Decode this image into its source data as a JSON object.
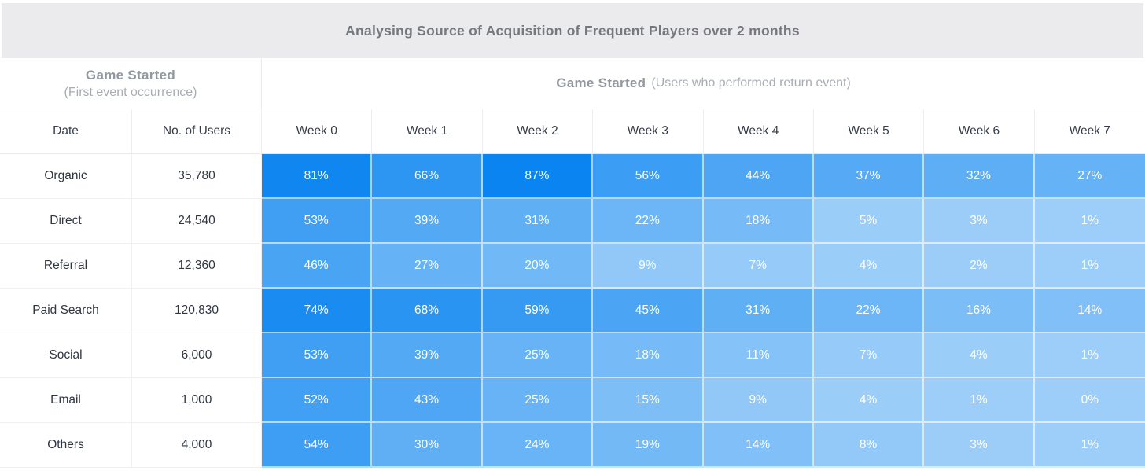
{
  "window": {
    "title": "Analysing Source of Acquisition of Frequent Players over 2 months"
  },
  "group_headers": {
    "first_event": {
      "title": "Game Started",
      "subtitle": "(First event occurrence)"
    },
    "return_event": {
      "title": "Game Started",
      "subtitle": "(Users who performed return event)"
    }
  },
  "chart_data": {
    "type": "heatmap",
    "title": "Analysing Source of Acquisition of Frequent Players over 2 months",
    "row_header": "Date",
    "users_header": "No. of Users",
    "columns": [
      "Week 0",
      "Week 1",
      "Week 2",
      "Week 3",
      "Week 4",
      "Week 5",
      "Week 6",
      "Week 7"
    ],
    "rows": [
      {
        "label": "Organic",
        "users": "35,780",
        "retention_pct": [
          81,
          66,
          87,
          56,
          44,
          37,
          32,
          27
        ]
      },
      {
        "label": "Direct",
        "users": "24,540",
        "retention_pct": [
          53,
          39,
          31,
          22,
          18,
          5,
          3,
          1
        ]
      },
      {
        "label": "Referral",
        "users": "12,360",
        "retention_pct": [
          46,
          27,
          20,
          9,
          7,
          4,
          2,
          1
        ]
      },
      {
        "label": "Paid Search",
        "users": "120,830",
        "retention_pct": [
          74,
          68,
          59,
          45,
          31,
          22,
          16,
          14
        ]
      },
      {
        "label": "Social",
        "users": "6,000",
        "retention_pct": [
          53,
          39,
          25,
          18,
          11,
          7,
          4,
          1
        ]
      },
      {
        "label": "Email",
        "users": "1,000",
        "retention_pct": [
          52,
          43,
          25,
          15,
          9,
          4,
          1,
          0
        ]
      },
      {
        "label": "Others",
        "users": "4,000",
        "retention_pct": [
          54,
          30,
          24,
          19,
          14,
          8,
          3,
          1
        ]
      }
    ],
    "value_suffix": "%",
    "color_scale": {
      "base": "#0a84f0",
      "min_alpha": 0.4,
      "max_alpha": 1.0
    }
  },
  "colors": {
    "accent_blue": "#0a84f0",
    "title_bar_bg": "#ebebed",
    "title_text": "#75787d",
    "muted_header_text": "#9297a0",
    "subtle_header_text": "#a8acb4",
    "dark_text": "#2f3541",
    "border": "#e9eaec"
  }
}
